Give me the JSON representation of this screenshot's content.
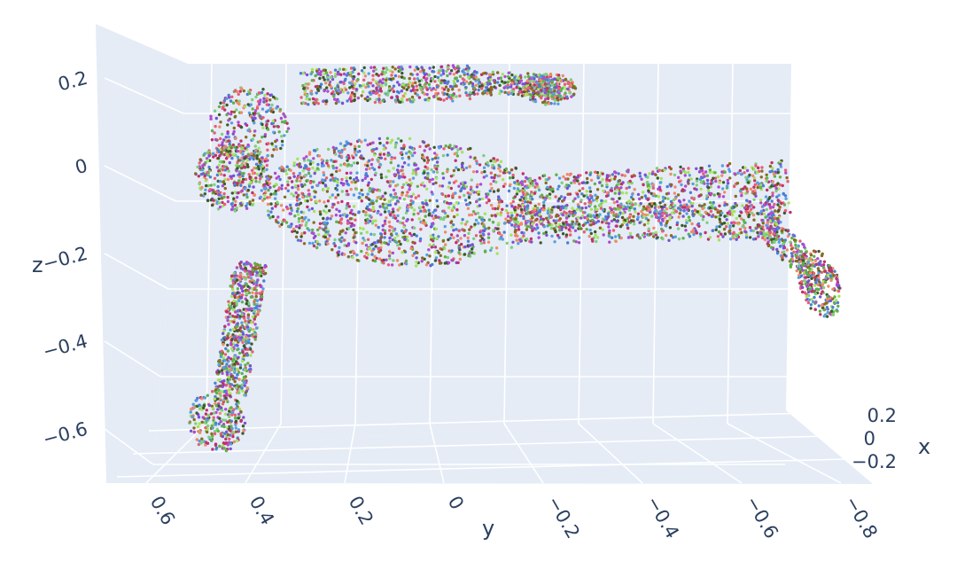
{
  "chart_data": {
    "type": "scatter3d",
    "title": "",
    "background_color": "#e5ecf6",
    "grid": true,
    "axes": {
      "x": {
        "label": "x",
        "ticks": [
          {
            "v": 0.2,
            "label": "0.2"
          },
          {
            "v": 0,
            "label": "0"
          },
          {
            "v": -0.2,
            "label": "−0.2"
          }
        ]
      },
      "y": {
        "label": "y",
        "ticks": [
          {
            "v": 0.6,
            "label": "0.6"
          },
          {
            "v": 0.4,
            "label": "0.4"
          },
          {
            "v": 0.2,
            "label": "0.2"
          },
          {
            "v": 0,
            "label": "0"
          },
          {
            "v": -0.2,
            "label": "−0.2"
          },
          {
            "v": -0.4,
            "label": "−0.4"
          },
          {
            "v": -0.6,
            "label": "−0.6"
          },
          {
            "v": -0.8,
            "label": "−0.8"
          }
        ]
      },
      "z": {
        "label": "z",
        "ticks": [
          {
            "v": 0.2,
            "label": "0.2"
          },
          {
            "v": 0,
            "label": "0"
          },
          {
            "v": -0.2,
            "label": "−0.2"
          },
          {
            "v": -0.4,
            "label": "−0.4"
          },
          {
            "v": -0.6,
            "label": "−0.6"
          }
        ]
      }
    },
    "series": [
      {
        "marker_colors": [
          "#e85d75",
          "#7a4fd6",
          "#5fb04c",
          "#8a6a1e",
          "#4a7fd4",
          "#c0306a",
          "#a6e35a",
          "#3d5a2a",
          "#f08a6a",
          "#5a9ee0",
          "#b04ad0",
          "#7fcf7a"
        ],
        "points": [
          {
            "y": 0.58,
            "z": 0.0
          },
          {
            "y": 0.5,
            "z": 0.09
          },
          {
            "y": 0.36,
            "z": 0.22
          },
          {
            "y": 0.0,
            "z": 0.29
          },
          {
            "y": -0.26,
            "z": 0.3
          },
          {
            "y": 0.22,
            "z": 0.0
          },
          {
            "y": -0.2,
            "z": 0.0
          },
          {
            "y": -0.5,
            "z": 0.0
          },
          {
            "y": -0.86,
            "z": 0.0
          },
          {
            "y": -0.94,
            "z": -0.16
          },
          {
            "y": 0.52,
            "z": -0.18
          },
          {
            "y": 0.5,
            "z": -0.52
          }
        ]
      }
    ]
  }
}
